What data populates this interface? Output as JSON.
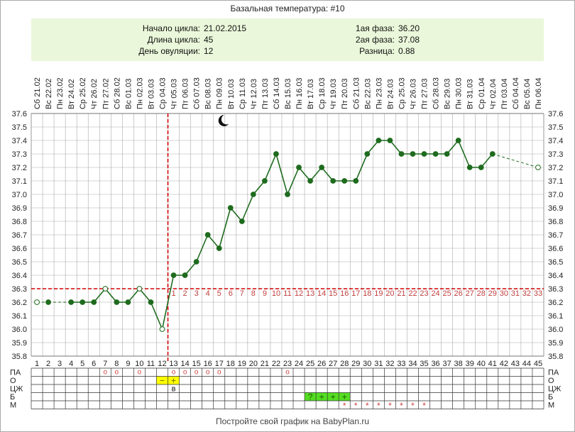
{
  "title": "Базальная температура: #10",
  "footer": "Постройте свой график на BabyPlan.ru",
  "info_left": {
    "start_label": "Начало цикла:",
    "start_value": "21.02.2015",
    "length_label": "Длина цикла:",
    "length_value": "45",
    "ovulation_label": "День овуляции:",
    "ovulation_value": "12"
  },
  "info_right": {
    "phase1_label": "1ая фаза:",
    "phase1_value": "36.20",
    "phase2_label": "2ая фаза:",
    "phase2_value": "37.08",
    "diff_label": "Разница:",
    "diff_value": "0.88"
  },
  "colors": {
    "line": "#1e6b1e",
    "point": "#1e6b1e",
    "reference_line": "#d40000",
    "post_ovulation_days": "#c04040",
    "info_box": "#eaf7da",
    "grid": "#aaaaaa",
    "marker_o": "#d04040",
    "marker_m": "#d04040",
    "yellow_cell": "#ffff00",
    "green_cell": "#55dd22"
  },
  "moon_icon": "crescent-moon-icon",
  "chart_data": {
    "type": "line",
    "x": [
      1,
      2,
      3,
      4,
      5,
      6,
      7,
      8,
      9,
      10,
      11,
      12,
      13,
      14,
      15,
      16,
      17,
      18,
      19,
      20,
      21,
      22,
      23,
      24,
      25,
      26,
      27,
      28,
      29,
      30,
      31,
      32,
      33,
      34,
      35,
      36,
      37,
      38,
      39,
      40,
      41,
      42,
      43,
      44,
      45
    ],
    "dates": [
      "Сб 21.02",
      "Вс 22.02",
      "Пн 23.02",
      "Вт 24.02",
      "Ср 25.02",
      "Чт 26.02",
      "Пт 27.02",
      "Сб 28.02",
      "Вс 01.03",
      "Пн 02.03",
      "Вт 03.03",
      "Ср 04.03",
      "Чт 05.03",
      "Пт 06.03",
      "Сб 07.03",
      "Вс 08.03",
      "Пн 09.03",
      "Вт 10.03",
      "Ср 11.03",
      "Чт 12.03",
      "Пт 13.03",
      "Сб 14.03",
      "Вс 15.03",
      "Пн 16.03",
      "Вт 17.03",
      "Ср 18.03",
      "Чт 19.03",
      "Пт 20.03",
      "Сб 21.03",
      "Вс 22.03",
      "Пн 23.03",
      "Вт 24.03",
      "Ср 25.03",
      "Чт 26.03",
      "Пт 27.03",
      "Сб 28.03",
      "Вс 29.03",
      "Пн 30.03",
      "Вт 31.03",
      "Ср 01.04",
      "Чт 02.04",
      "Пт 03.04",
      "Сб 04.04",
      "Вс 05.04",
      "Пн 06.04"
    ],
    "temperatures": [
      36.2,
      36.2,
      null,
      36.2,
      36.2,
      36.2,
      36.3,
      36.2,
      36.2,
      36.3,
      36.2,
      36.0,
      36.4,
      36.4,
      36.5,
      36.7,
      36.6,
      36.9,
      36.8,
      37.0,
      37.1,
      37.3,
      37.0,
      37.2,
      37.1,
      37.2,
      37.1,
      37.1,
      37.1,
      37.3,
      37.4,
      37.4,
      37.3,
      37.3,
      37.3,
      37.3,
      37.3,
      37.4,
      37.2,
      37.2,
      37.3,
      null,
      null,
      null,
      37.2
    ],
    "open_points": [
      1,
      7,
      10,
      12
    ],
    "dashed_segments": [
      [
        1,
        2
      ],
      [
        2,
        4
      ],
      [
        41,
        45
      ]
    ],
    "ovulation_day": 12,
    "coverline": 36.3,
    "post_ovulation_labels": [
      "1",
      "2",
      "3",
      "4",
      "5",
      "6",
      "7",
      "8",
      "9",
      "10",
      "11",
      "12",
      "13",
      "14",
      "15",
      "16",
      "17",
      "18",
      "19",
      "20",
      "21",
      "22",
      "23",
      "24",
      "25",
      "26",
      "27",
      "28",
      "29",
      "30",
      "31",
      "32",
      "33"
    ],
    "ylim": [
      35.8,
      37.6
    ],
    "yticks": [
      "35.8",
      "35.9",
      "36.0",
      "36.1",
      "36.2",
      "36.3",
      "36.4",
      "36.5",
      "36.6",
      "36.7",
      "36.8",
      "36.9",
      "37.0",
      "37.1",
      "37.2",
      "37.3",
      "37.4",
      "37.5",
      "37.6"
    ],
    "moon_day": 17,
    "grid": true
  },
  "bottom_table": {
    "row_labels": [
      "ПА",
      "О",
      "ЦЖ",
      "Б",
      "М"
    ],
    "pa_days": [
      7,
      8,
      10,
      13,
      14,
      15,
      16,
      17,
      23
    ],
    "o_cells": [
      {
        "day": 12,
        "text": "−"
      },
      {
        "day": 13,
        "text": "+"
      }
    ],
    "o_below": {
      "day": 13,
      "text": "в"
    },
    "b_cells": [
      {
        "day": 25,
        "text": "?"
      },
      {
        "day": 26,
        "text": "+"
      },
      {
        "day": 27,
        "text": "+"
      },
      {
        "day": 28,
        "text": "+"
      }
    ],
    "m_days": [
      28,
      29,
      30,
      31,
      32,
      33,
      34,
      35
    ],
    "pa_symbol": "o",
    "m_symbol": "*"
  }
}
